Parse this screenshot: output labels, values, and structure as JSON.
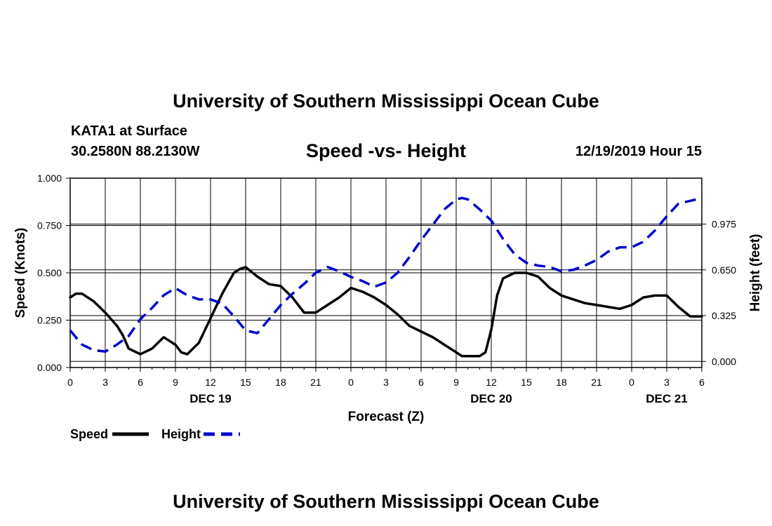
{
  "header": {
    "title": "University of Southern Mississippi Ocean Cube",
    "station": "KATA1 at Surface",
    "coords": "30.2580N 88.2130W",
    "plot_title": "Speed -vs- Height",
    "valid_time": "12/19/2019 Hour 15"
  },
  "footer": {
    "title": "University of Southern Mississippi Ocean Cube"
  },
  "colors": {
    "speed": "#000000",
    "height": "#0000cc",
    "grid": "#000000"
  },
  "chart_data": {
    "type": "line",
    "title": "Speed -vs- Height",
    "xlabel": "Forecast (Z)",
    "ylabel": "Speed (Knots)",
    "ylabel_right": "Height (feet)",
    "x_unit": "hours from 00Z Dec 19",
    "xlim": [
      0,
      54
    ],
    "ylim": [
      0,
      1
    ],
    "ylim_right": [
      -0.0433,
      1.3011
    ],
    "grid": true,
    "x_ticks": [
      0,
      3,
      6,
      9,
      12,
      15,
      18,
      21,
      24,
      27,
      30,
      33,
      36,
      39,
      42,
      45,
      48,
      51,
      54
    ],
    "x_tick_labels": [
      "0",
      "3",
      "6",
      "9",
      "12",
      "15",
      "18",
      "21",
      "0",
      "3",
      "6",
      "9",
      "12",
      "15",
      "18",
      "21",
      "0",
      "3",
      "6"
    ],
    "day_labels": [
      {
        "x": 12,
        "label": "DEC 19"
      },
      {
        "x": 36,
        "label": "DEC 20"
      },
      {
        "x": 51,
        "label": "DEC 21"
      }
    ],
    "y_ticks_left": [
      0,
      0.25,
      0.5,
      0.75,
      1.0
    ],
    "y_tick_labels_left": [
      "0.000",
      "0.250",
      "0.500",
      "0.750",
      "1.000"
    ],
    "y_ticks_right": [
      0,
      0.325,
      0.65,
      0.975
    ],
    "y_tick_labels_right": [
      "0.000",
      "0.325",
      "0.650",
      "0.975"
    ],
    "legend": [
      {
        "name": "Speed",
        "style": "solid"
      },
      {
        "name": "Height",
        "style": "dashed"
      }
    ],
    "series": [
      {
        "name": "Speed",
        "axis": "left",
        "style": "solid",
        "x": [
          0,
          0.5,
          1,
          2,
          3,
          4,
          4.5,
          5,
          6,
          7,
          7.5,
          8,
          9,
          9.5,
          10,
          11,
          12,
          13,
          14,
          14.5,
          15,
          16,
          16.5,
          17,
          18,
          19,
          19.5,
          20,
          21,
          22,
          23,
          24,
          25,
          26,
          27,
          28,
          28.5,
          29,
          30,
          31,
          32,
          33,
          33.5,
          34,
          35,
          35.5,
          36,
          36.5,
          37,
          38,
          39,
          40,
          41,
          42,
          43,
          44,
          45,
          46,
          47,
          48,
          48.5,
          49,
          50,
          51,
          52,
          53,
          54
        ],
        "values": [
          0.37,
          0.39,
          0.39,
          0.35,
          0.29,
          0.22,
          0.17,
          0.1,
          0.07,
          0.1,
          0.13,
          0.16,
          0.12,
          0.08,
          0.07,
          0.13,
          0.26,
          0.39,
          0.5,
          0.52,
          0.53,
          0.48,
          0.46,
          0.44,
          0.43,
          0.37,
          0.33,
          0.29,
          0.29,
          0.33,
          0.37,
          0.42,
          0.4,
          0.37,
          0.33,
          0.28,
          0.25,
          0.22,
          0.19,
          0.16,
          0.12,
          0.08,
          0.06,
          0.06,
          0.06,
          0.08,
          0.2,
          0.38,
          0.47,
          0.5,
          0.5,
          0.48,
          0.42,
          0.38,
          0.36,
          0.34,
          0.33,
          0.32,
          0.31,
          0.33,
          0.35,
          0.37,
          0.38,
          0.38,
          0.32,
          0.27,
          0.27
        ]
      },
      {
        "name": "Height",
        "axis": "right",
        "style": "dashed",
        "x": [
          0,
          1,
          2,
          3,
          4,
          5,
          6,
          7,
          8,
          9,
          10,
          11,
          12,
          13,
          14,
          15,
          16,
          17,
          18,
          19,
          20,
          21,
          22,
          23,
          24,
          25,
          26,
          27,
          28,
          29,
          30,
          31,
          32,
          33,
          33.5,
          34,
          35,
          36,
          37,
          38,
          39,
          40,
          41,
          42,
          43,
          44,
          45,
          46,
          47,
          48,
          49,
          50,
          51,
          52,
          53,
          54
        ],
        "values": [
          0.22,
          0.12,
          0.08,
          0.07,
          0.12,
          0.18,
          0.3,
          0.38,
          0.47,
          0.52,
          0.47,
          0.44,
          0.44,
          0.41,
          0.32,
          0.22,
          0.2,
          0.3,
          0.4,
          0.48,
          0.55,
          0.63,
          0.67,
          0.64,
          0.6,
          0.57,
          0.53,
          0.56,
          0.63,
          0.74,
          0.86,
          0.97,
          1.08,
          1.15,
          1.16,
          1.15,
          1.08,
          1.0,
          0.87,
          0.76,
          0.7,
          0.68,
          0.67,
          0.64,
          0.65,
          0.68,
          0.72,
          0.78,
          0.81,
          0.81,
          0.85,
          0.93,
          1.03,
          1.12,
          1.14,
          1.16
        ]
      }
    ]
  }
}
